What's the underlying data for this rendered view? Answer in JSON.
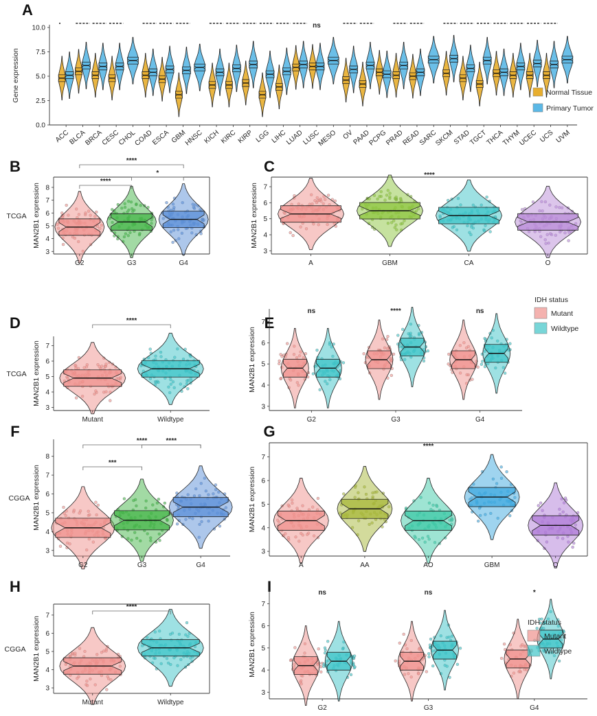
{
  "colors": {
    "normal": "#E8AE2E",
    "tumor": "#5BB8E6",
    "mutant": "#F0928D",
    "wildtype": "#3EC4C8",
    "A": "#F0928D",
    "GBM_green": "#8DC63F",
    "CA": "#3EC4C8",
    "O": "#B98BD8",
    "G2": "#F0928D",
    "G3": "#45B649",
    "G4": "#5B8FD8",
    "AA": "#A8B83A",
    "AO": "#3EC9A7",
    "GBM_blue": "#3FA9E0",
    "O_purple": "#B07CD8"
  },
  "chart_data": [
    {
      "panel": "A",
      "type": "violin",
      "ylabel": "Gene expression",
      "ylim": [
        0,
        10
      ],
      "yticks": [
        "0.0",
        "2.5",
        "5.0",
        "7.5",
        "10.0"
      ],
      "legend": [
        "Normal Tissue",
        "Primary Tumor"
      ],
      "categories": [
        "ACC",
        "BLCA",
        "BRCA",
        "CESC",
        "CHOL",
        "COAD",
        "ESCA",
        "GBM",
        "HNSC",
        "KICH",
        "KIRC",
        "KIRP",
        "LGG",
        "LIHC",
        "LUAD",
        "LUSC",
        "MESO",
        "OV",
        "PAAD",
        "PCPG",
        "PRAD",
        "READ",
        "SARC",
        "SKCM",
        "STAD",
        "TGCT",
        "THCA",
        "THYM",
        "UCEC",
        "UCS",
        "UVM"
      ],
      "normal_median": [
        4.8,
        5.5,
        5.1,
        4.8,
        null,
        5.1,
        4.7,
        3.1,
        null,
        4.1,
        4.1,
        4.3,
        3.1,
        3.9,
        5.9,
        6.0,
        null,
        4.6,
        4.2,
        5.4,
        5.1,
        5.0,
        null,
        5.3,
        4.8,
        4.2,
        5.3,
        5.1,
        5.1,
        5.1,
        null
      ],
      "tumor_median": [
        5.1,
        6.1,
        6.0,
        6.0,
        6.6,
        5.4,
        5.7,
        5.6,
        5.9,
        5.4,
        5.8,
        6.2,
        5.2,
        5.5,
        6.2,
        6.0,
        6.6,
        5.7,
        6.1,
        5.2,
        6.1,
        5.4,
        6.7,
        6.8,
        5.8,
        6.6,
        5.4,
        6.0,
        6.3,
        6.2,
        6.7
      ],
      "significance": [
        "*",
        "****",
        "****",
        "****",
        "",
        "****",
        "****",
        "****",
        "",
        "****",
        "****",
        "****",
        "****",
        "****",
        "****",
        "ns",
        "",
        "****",
        "****",
        "",
        "****",
        "****",
        "",
        "****",
        "****",
        "****",
        "****",
        "****",
        "****",
        "****",
        ""
      ]
    },
    {
      "panel": "B",
      "type": "violin",
      "row_label": "TCGA",
      "ylabel": "MAN2B1 expression",
      "categories": [
        "G2",
        "G3",
        "G4"
      ],
      "median": [
        4.9,
        5.3,
        5.5
      ],
      "ylim": [
        2.8,
        8.8
      ],
      "yticks": [
        "3",
        "4",
        "5",
        "6",
        "7",
        "8"
      ],
      "comparisons": [
        {
          "pair": [
            "G2",
            "G3"
          ],
          "label": "****"
        },
        {
          "pair": [
            "G3",
            "G4"
          ],
          "label": "*"
        },
        {
          "pair": [
            "G2",
            "G4"
          ],
          "label": "****"
        }
      ]
    },
    {
      "panel": "C",
      "type": "violin",
      "ylabel": "MAN2B1 expression",
      "categories": [
        "A",
        "GBM",
        "CA",
        "O"
      ],
      "median": [
        5.3,
        5.5,
        5.2,
        4.8
      ],
      "ylim": [
        2.8,
        7.6
      ],
      "yticks": [
        "3",
        "4",
        "5",
        "6",
        "7"
      ],
      "overall": "****"
    },
    {
      "panel": "D",
      "type": "violin",
      "row_label": "TCGA",
      "ylabel": "MAN2B1 expression",
      "categories": [
        "Mutant",
        "Wildtype"
      ],
      "median": [
        4.9,
        5.5
      ],
      "ylim": [
        2.8,
        7.6
      ],
      "yticks": [
        "3",
        "4",
        "5",
        "6",
        "7"
      ],
      "comparisons": [
        {
          "pair": [
            "Mutant",
            "Wildtype"
          ],
          "label": "****"
        }
      ]
    },
    {
      "panel": "E",
      "type": "violin",
      "ylabel": "MAN2B1 expression",
      "categories": [
        "G2",
        "G3",
        "G4"
      ],
      "groups": [
        "Mutant",
        "Wildtype"
      ],
      "median": [
        [
          4.8,
          4.8
        ],
        [
          5.2,
          5.8
        ],
        [
          5.2,
          5.5
        ]
      ],
      "ylim": [
        2.8,
        7.6
      ],
      "yticks": [
        "3",
        "4",
        "5",
        "6",
        "7"
      ],
      "significance": [
        "ns",
        "****",
        "ns"
      ],
      "legend_title": "IDH status",
      "legend": [
        "Mutant",
        "Wildtype"
      ]
    },
    {
      "panel": "F",
      "type": "violin",
      "row_label": "CGGA",
      "ylabel": "MAN2B1 expression",
      "categories": [
        "G2",
        "G3",
        "G4"
      ],
      "median": [
        4.2,
        4.6,
        5.3
      ],
      "ylim": [
        2.7,
        8.9
      ],
      "yticks": [
        "3",
        "4",
        "5",
        "6",
        "7",
        "8"
      ],
      "comparisons": [
        {
          "pair": [
            "G2",
            "G3"
          ],
          "label": "***"
        },
        {
          "pair": [
            "G3",
            "G4"
          ],
          "label": "****"
        },
        {
          "pair": [
            "G2",
            "G4"
          ],
          "label": "****"
        }
      ]
    },
    {
      "panel": "G",
      "type": "violin",
      "ylabel": "MAN2B1 expression",
      "categories": [
        "A",
        "AA",
        "AO",
        "GBM",
        "O"
      ],
      "median": [
        4.3,
        4.8,
        4.3,
        5.3,
        4.1
      ],
      "ylim": [
        2.8,
        7.6
      ],
      "yticks": [
        "3",
        "4",
        "5",
        "6",
        "7"
      ],
      "overall": "****"
    },
    {
      "panel": "H",
      "type": "violin",
      "row_label": "CGGA",
      "ylabel": "MAN2B1 expression",
      "categories": [
        "Mutant",
        "Wildtype"
      ],
      "median": [
        4.2,
        5.2
      ],
      "ylim": [
        2.7,
        7.6
      ],
      "yticks": [
        "3",
        "4",
        "5",
        "6",
        "7"
      ],
      "comparisons": [
        {
          "pair": [
            "Mutant",
            "Wildtype"
          ],
          "label": "****"
        }
      ]
    },
    {
      "panel": "I",
      "type": "violin",
      "ylabel": "MAN2B1 expression",
      "categories": [
        "G2",
        "G3",
        "G4"
      ],
      "groups": [
        "Mutant",
        "Wildtype"
      ],
      "median": [
        [
          4.2,
          4.4
        ],
        [
          4.4,
          4.9
        ],
        [
          4.5,
          5.4
        ]
      ],
      "ylim": [
        2.7,
        7.6
      ],
      "yticks": [
        "3",
        "4",
        "5",
        "6",
        "7"
      ],
      "significance": [
        "ns",
        "ns",
        "*"
      ],
      "legend_title": "IDH status",
      "legend": [
        "Mutant",
        "Wildtype"
      ]
    }
  ]
}
